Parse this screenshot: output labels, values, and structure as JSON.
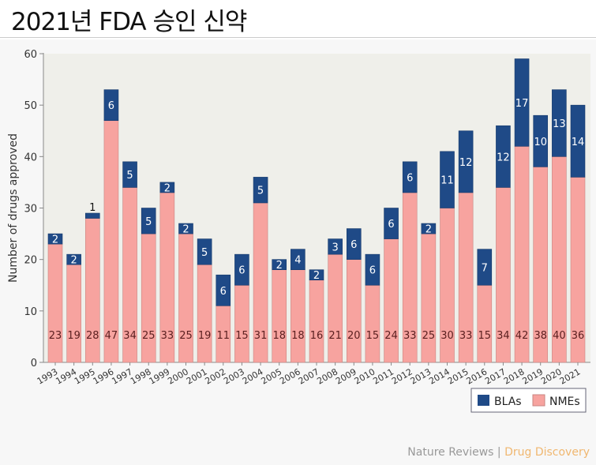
{
  "title": "2021년 FDA 승인 신약",
  "credit": {
    "left": "Nature Reviews",
    "sep": " | ",
    "right": "Drug Discovery"
  },
  "colors": {
    "bla": "#1f4a87",
    "nme": "#f7a39f",
    "plot_bg": "#efefea"
  },
  "chart_data": {
    "type": "bar",
    "stacked": true,
    "title": "2021년 FDA 승인 신약",
    "xlabel": "",
    "ylabel": "Number of drugs approved",
    "ylim": [
      0,
      60
    ],
    "yticks": [
      0,
      10,
      20,
      30,
      40,
      50,
      60
    ],
    "grid": false,
    "legend_position": "bottom-right",
    "categories": [
      "1993",
      "1994",
      "1995",
      "1996",
      "1997",
      "1998",
      "1999",
      "2000",
      "2001",
      "2002",
      "2003",
      "2004",
      "2005",
      "2006",
      "2007",
      "2008",
      "2009",
      "2010",
      "2011",
      "2012",
      "2013",
      "2014",
      "2015",
      "2016",
      "2017",
      "2018",
      "2019",
      "2020",
      "2021"
    ],
    "series": [
      {
        "name": "NMEs",
        "values": [
          23,
          19,
          28,
          47,
          34,
          25,
          33,
          25,
          19,
          11,
          15,
          31,
          18,
          18,
          16,
          21,
          20,
          15,
          24,
          33,
          25,
          30,
          33,
          15,
          34,
          42,
          38,
          40,
          36
        ]
      },
      {
        "name": "BLAs",
        "values": [
          2,
          2,
          1,
          6,
          5,
          5,
          2,
          2,
          5,
          6,
          6,
          5,
          2,
          4,
          2,
          3,
          6,
          6,
          6,
          6,
          2,
          11,
          12,
          7,
          12,
          17,
          10,
          13,
          14
        ]
      }
    ],
    "legend": [
      "BLAs",
      "NMEs"
    ]
  }
}
